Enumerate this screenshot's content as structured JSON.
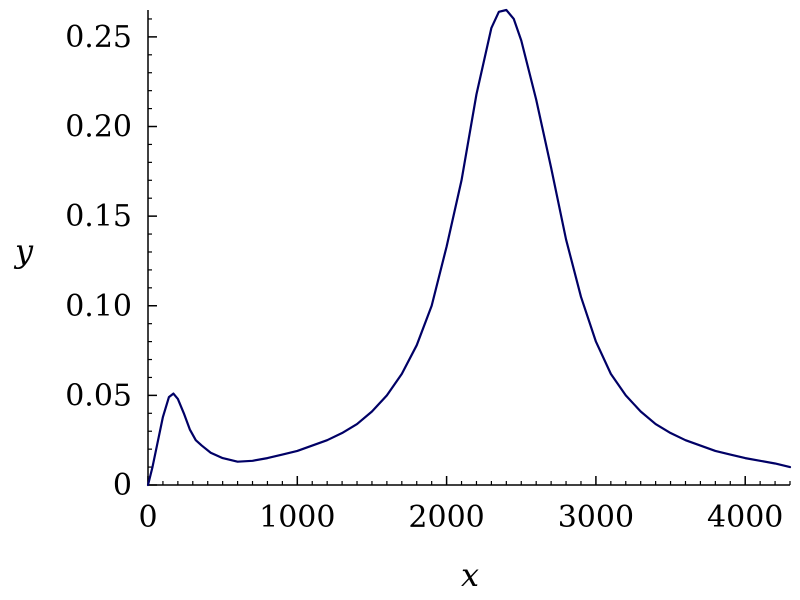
{
  "chart_data": {
    "type": "line",
    "title": "",
    "xlabel": "x",
    "ylabel": "y",
    "xlim": [
      0,
      4300
    ],
    "ylim": [
      0,
      0.265
    ],
    "grid": false,
    "x_ticks": [
      0,
      1000,
      2000,
      3000,
      4000
    ],
    "x_tick_labels": [
      "0",
      "1000",
      "2000",
      "3000",
      "4000"
    ],
    "y_ticks": [
      0,
      0.05,
      0.1,
      0.15,
      0.2,
      0.25
    ],
    "y_tick_labels": [
      "0",
      "0.05",
      "0.10",
      "0.15",
      "0.20",
      "0.25"
    ],
    "line_color": "#000066",
    "series": [
      {
        "x": [
          0,
          30,
          60,
          100,
          140,
          170,
          200,
          240,
          280,
          320,
          360,
          420,
          500,
          600,
          700,
          800,
          900,
          1000,
          1100,
          1200,
          1300,
          1400,
          1500,
          1600,
          1700,
          1800,
          1900,
          2000,
          2100,
          2200,
          2300,
          2350,
          2400,
          2450,
          2500,
          2600,
          2700,
          2800,
          2900,
          3000,
          3100,
          3200,
          3300,
          3400,
          3500,
          3600,
          3700,
          3800,
          3900,
          4000,
          4100,
          4200,
          4300
        ],
        "y": [
          0,
          0.01,
          0.022,
          0.038,
          0.049,
          0.051,
          0.048,
          0.04,
          0.031,
          0.025,
          0.022,
          0.018,
          0.015,
          0.013,
          0.0135,
          0.015,
          0.017,
          0.019,
          0.022,
          0.025,
          0.029,
          0.034,
          0.041,
          0.05,
          0.062,
          0.078,
          0.1,
          0.133,
          0.17,
          0.218,
          0.255,
          0.264,
          0.265,
          0.26,
          0.248,
          0.215,
          0.177,
          0.137,
          0.105,
          0.08,
          0.062,
          0.05,
          0.041,
          0.034,
          0.029,
          0.025,
          0.022,
          0.019,
          0.017,
          0.015,
          0.0135,
          0.012,
          0.01
        ]
      }
    ]
  }
}
